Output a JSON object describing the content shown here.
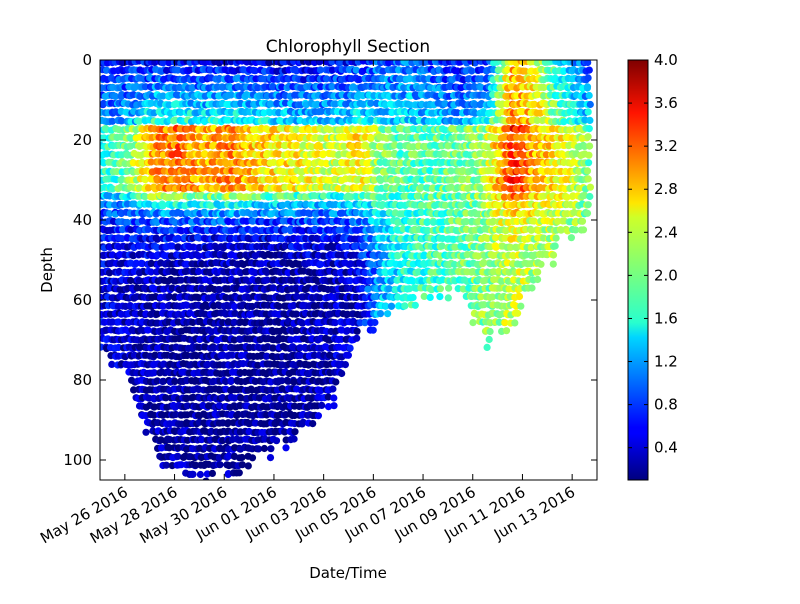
{
  "chart_data": {
    "type": "scatter",
    "title": "Chlorophyll Section",
    "xlabel": "Date/Time",
    "ylabel": "Depth",
    "x_range": [
      "2016-05-25",
      "2016-06-14"
    ],
    "ylim": [
      105,
      0
    ],
    "y_inverted": true,
    "yticks": [
      0,
      20,
      40,
      60,
      80,
      100
    ],
    "xtick_labels": [
      "May 26 2016",
      "May 28 2016",
      "May 30 2016",
      "Jun 01 2016",
      "Jun 03 2016",
      "Jun 05 2016",
      "Jun 07 2016",
      "Jun 09 2016",
      "Jun 11 2016",
      "Jun 13 2016"
    ],
    "xtick_dates": [
      "2016-05-26",
      "2016-05-28",
      "2016-05-30",
      "2016-06-01",
      "2016-06-03",
      "2016-06-05",
      "2016-06-07",
      "2016-06-09",
      "2016-06-11",
      "2016-06-13"
    ],
    "colorbar": {
      "colormap": "jet",
      "min": 0.1,
      "max": 4.0,
      "ticks": [
        "0.4",
        "0.8",
        "1.2",
        "1.6",
        "2.0",
        "2.4",
        "2.8",
        "3.2",
        "3.6",
        "4.0"
      ]
    },
    "grid": false,
    "profiles": [
      {
        "date": "2016-05-25",
        "max_depth": 73,
        "surface": 0.6,
        "subsurface": 1.6,
        "deep": 0.45
      },
      {
        "date": "2016-05-26",
        "max_depth": 80,
        "surface": 0.6,
        "subsurface": 2.0,
        "deep": 0.35
      },
      {
        "date": "2016-05-27",
        "max_depth": 97,
        "surface": 0.55,
        "subsurface": 2.9,
        "deep": 0.25
      },
      {
        "date": "2016-05-28",
        "max_depth": 103,
        "surface": 0.5,
        "subsurface": 3.1,
        "deep": 0.2
      },
      {
        "date": "2016-05-29",
        "max_depth": 104,
        "surface": 0.5,
        "subsurface": 2.8,
        "deep": 0.2
      },
      {
        "date": "2016-05-30",
        "max_depth": 103,
        "surface": 0.5,
        "subsurface": 3.0,
        "deep": 0.2
      },
      {
        "date": "2016-05-31",
        "max_depth": 99,
        "surface": 0.5,
        "subsurface": 2.7,
        "deep": 0.2
      },
      {
        "date": "2016-06-01",
        "max_depth": 96,
        "surface": 0.4,
        "subsurface": 2.6,
        "deep": 0.2
      },
      {
        "date": "2016-06-02",
        "max_depth": 92,
        "surface": 0.4,
        "subsurface": 2.5,
        "deep": 0.25
      },
      {
        "date": "2016-06-03",
        "max_depth": 85,
        "surface": 0.5,
        "subsurface": 2.3,
        "deep": 0.3
      },
      {
        "date": "2016-06-04",
        "max_depth": 70,
        "surface": 0.7,
        "subsurface": 2.6,
        "deep": 0.4
      },
      {
        "date": "2016-06-05",
        "max_depth": 63,
        "surface": 0.9,
        "subsurface": 2.0,
        "deep": 1.3
      },
      {
        "date": "2016-06-06",
        "max_depth": 60,
        "surface": 1.0,
        "subsurface": 1.9,
        "deep": 1.7
      },
      {
        "date": "2016-06-07",
        "max_depth": 58,
        "surface": 0.8,
        "subsurface": 1.9,
        "deep": 1.8
      },
      {
        "date": "2016-06-08",
        "max_depth": 58,
        "surface": 0.6,
        "subsurface": 2.0,
        "deep": 1.9
      },
      {
        "date": "2016-06-09",
        "max_depth": 70,
        "surface": 0.7,
        "subsurface": 2.2,
        "deep": 2.1
      },
      {
        "date": "2016-06-10",
        "max_depth": 65,
        "surface": 2.8,
        "subsurface": 3.4,
        "deep": 2.3
      },
      {
        "date": "2016-06-11",
        "max_depth": 55,
        "surface": 2.4,
        "subsurface": 2.8,
        "deep": 2.2
      },
      {
        "date": "2016-06-12",
        "max_depth": 45,
        "surface": 1.3,
        "subsurface": 2.5,
        "deep": 2.2
      },
      {
        "date": "2016-06-13",
        "max_depth": 40,
        "surface": 0.9,
        "subsurface": 2.0,
        "deep": 1.9
      }
    ]
  }
}
